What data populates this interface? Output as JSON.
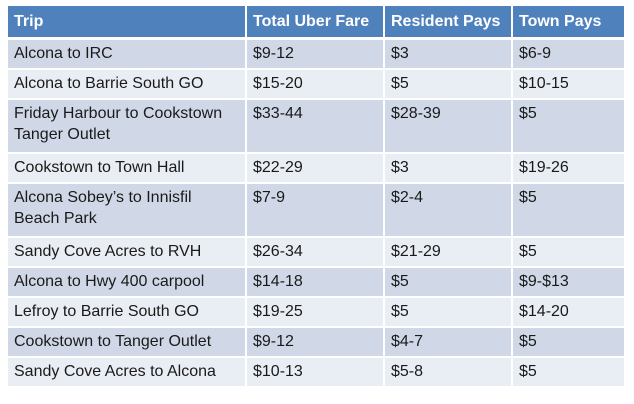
{
  "table": {
    "headers": [
      "Trip",
      "Total Uber Fare",
      "Resident Pays",
      "Town Pays"
    ],
    "rows": [
      [
        "Alcona to IRC",
        "$9-12",
        "$3",
        "$6-9"
      ],
      [
        "Alcona to Barrie South GO",
        "$15-20",
        "$5",
        "$10-15"
      ],
      [
        "Friday Harbour to Cookstown Tanger Outlet",
        "$33-44",
        "$28-39",
        "$5"
      ],
      [
        "Cookstown to Town Hall",
        "$22-29",
        "$3",
        "$19-26"
      ],
      [
        "Alcona Sobey’s to Innisfil Beach Park",
        "$7-9",
        "$2-4",
        "$5"
      ],
      [
        "Sandy Cove Acres to RVH",
        "$26-34",
        "$21-29",
        "$5"
      ],
      [
        "Alcona to Hwy 400 carpool",
        "$14-18",
        "$5",
        "$9-$13"
      ],
      [
        "Lefroy to Barrie South GO",
        "$19-25",
        "$5",
        "$14-20"
      ],
      [
        "Cookstown to Tanger Outlet",
        "$9-12",
        "$4-7",
        "$5"
      ],
      [
        "Sandy Cove Acres to Alcona",
        "$10-13",
        "$5-8",
        "$5"
      ]
    ]
  },
  "colors": {
    "header_bg": "#4f81bd",
    "row_odd_bg": "#d0d8e8",
    "row_even_bg": "#e9edf4"
  }
}
